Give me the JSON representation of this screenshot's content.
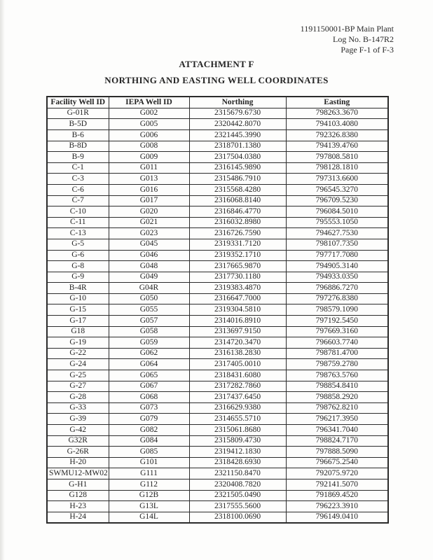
{
  "page_header": {
    "line1": "1191150001-BP Main Plant",
    "line2": "Log No. B-147R2",
    "line3": "Page F-1 of F-3"
  },
  "title": "ATTACHMENT F",
  "subtitle": "NORTHING AND EASTING WELL COORDINATES",
  "table": {
    "columns": [
      "Facility Well ID",
      "IEPA Well ID",
      "Northing",
      "Easting"
    ],
    "rows": [
      [
        "G-01R",
        "G002",
        "2315679.6730",
        "798263.3670"
      ],
      [
        "B-5D",
        "G005",
        "2320442.8070",
        "794103.4080"
      ],
      [
        "B-6",
        "G006",
        "2321445.3990",
        "792326.8380"
      ],
      [
        "B-8D",
        "G008",
        "2318701.1380",
        "794139.4760"
      ],
      [
        "B-9",
        "G009",
        "2317504.0380",
        "797808.5810"
      ],
      [
        "C-1",
        "G011",
        "2316145.9890",
        "798128.1810"
      ],
      [
        "C-3",
        "G013",
        "2315486.7910",
        "797313.6600"
      ],
      [
        "C-6",
        "G016",
        "2315568.4280",
        "796545.3270"
      ],
      [
        "C-7",
        "G017",
        "2316068.8140",
        "796709.5230"
      ],
      [
        "C-10",
        "G020",
        "2316846.4770",
        "796084.5010"
      ],
      [
        "C-11",
        "G021",
        "2316032.8980",
        "795553.1050"
      ],
      [
        "C-13",
        "G023",
        "2316726.7590",
        "794627.7530"
      ],
      [
        "G-5",
        "G045",
        "2319331.7120",
        "798107.7350"
      ],
      [
        "G-6",
        "G046",
        "2319352.1710",
        "797717.7080"
      ],
      [
        "G-8",
        "G048",
        "2317665.9870",
        "794905.3140"
      ],
      [
        "G-9",
        "G049",
        "2317730.1180",
        "794933.0350"
      ],
      [
        "B-4R",
        "G04R",
        "2319383.4870",
        "796886.7270"
      ],
      [
        "G-10",
        "G050",
        "2316647.7000",
        "797276.8380"
      ],
      [
        "G-15",
        "G055",
        "2319304.5810",
        "798579.1090"
      ],
      [
        "G-17",
        "G057",
        "2314016.8910",
        "797192.5450"
      ],
      [
        "G18",
        "G058",
        "2313697.9150",
        "797669.3160"
      ],
      [
        "G-19",
        "G059",
        "2314720.3470",
        "796603.7740"
      ],
      [
        "G-22",
        "G062",
        "2316138.2830",
        "798781.4700"
      ],
      [
        "G-24",
        "G064",
        "2317405.0010",
        "798759.2780"
      ],
      [
        "G-25",
        "G065",
        "2318431.6080",
        "798763.5760"
      ],
      [
        "G-27",
        "G067",
        "2317282.7860",
        "798854.8410"
      ],
      [
        "G-28",
        "G068",
        "2317437.6450",
        "798858.2920"
      ],
      [
        "G-33",
        "G073",
        "2316629.9380",
        "798762.8210"
      ],
      [
        "G-39",
        "G079",
        "2314655.5710",
        "796217.3950"
      ],
      [
        "G-42",
        "G082",
        "2315061.8680",
        "796341.7040"
      ],
      [
        "G32R",
        "G084",
        "2315809.4730",
        "798824.7170"
      ],
      [
        "G-26R",
        "G085",
        "2319412.1830",
        "797888.5090"
      ],
      [
        "H-20",
        "G101",
        "2318428.6930",
        "796675.2540"
      ],
      [
        "SWMU12-MW02",
        "G111",
        "2321150.8470",
        "792075.9720"
      ],
      [
        "G-H1",
        "G112",
        "2320408.7820",
        "792141.5070"
      ],
      [
        "G128",
        "G12B",
        "2321505.0490",
        "791869.4520"
      ],
      [
        "H-23",
        "G13L",
        "2317555.5600",
        "796223.3910"
      ],
      [
        "H-24",
        "G14L",
        "2318100.0690",
        "796149.0410"
      ]
    ]
  },
  "colors": {
    "text": "#242424",
    "border": "#2b2b2b",
    "background": "#fdfdfc"
  }
}
